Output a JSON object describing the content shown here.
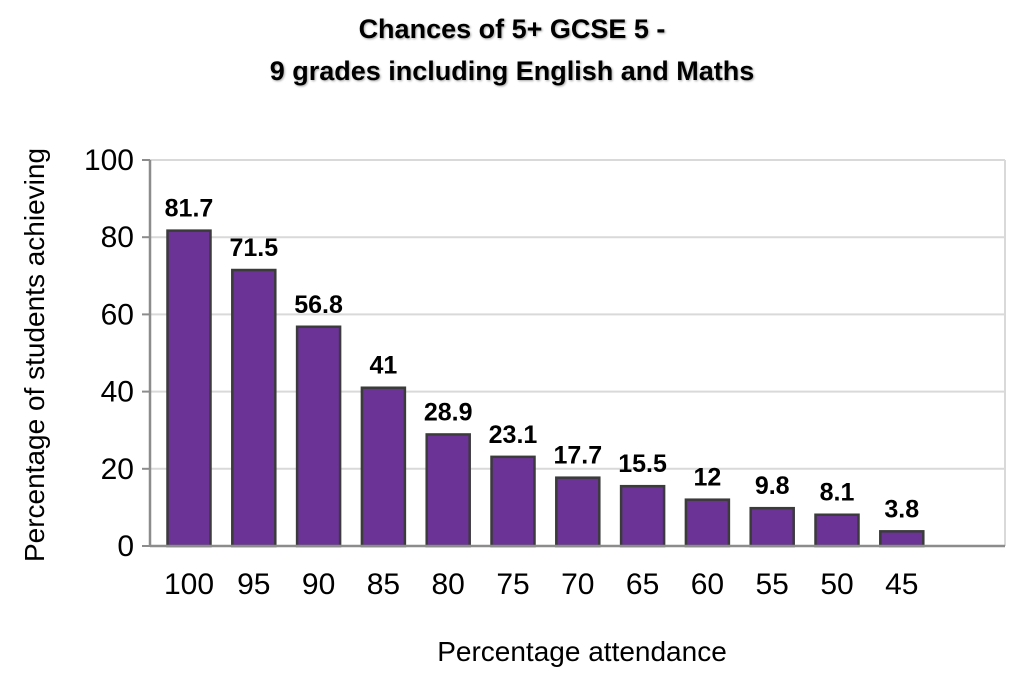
{
  "chart_data": {
    "type": "bar",
    "title_lines": [
      "Chances of 5+ GCSE 5 -",
      "9 grades including English and Maths"
    ],
    "xlabel": "Percentage attendance",
    "ylabel": "Percentage of students achieving",
    "categories": [
      "100",
      "95",
      "90",
      "85",
      "80",
      "75",
      "70",
      "65",
      "60",
      "55",
      "50",
      "45"
    ],
    "values": [
      81.7,
      71.5,
      56.8,
      41,
      28.9,
      23.1,
      17.7,
      15.5,
      12,
      9.8,
      8.1,
      3.8
    ],
    "data_labels": [
      "81.7",
      "71.5",
      "56.8",
      "41",
      "28.9",
      "23.1",
      "17.7",
      "15.5",
      "12",
      "9.8",
      "8.1",
      "3.8"
    ],
    "ylim": [
      0,
      100
    ],
    "yticks": [
      0,
      20,
      40,
      60,
      80,
      100
    ],
    "grid": true,
    "legend": "none",
    "bar_color": "#6a3395",
    "bar_edge_color": "#3b3b3b",
    "grid_color": "#d9d9d9"
  }
}
